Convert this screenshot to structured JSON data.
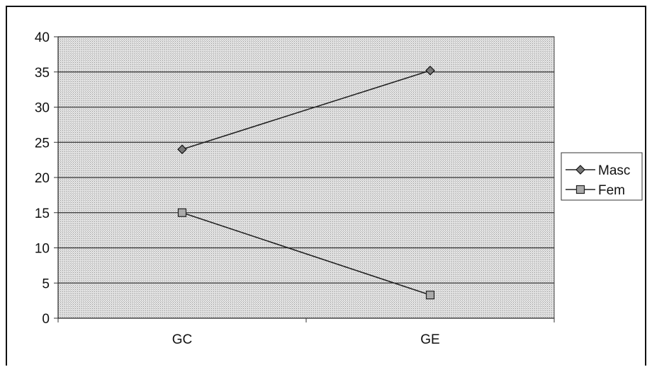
{
  "chart_data": {
    "type": "line",
    "categories": [
      "GC",
      "GE"
    ],
    "series": [
      {
        "name": "Masc",
        "values": [
          24,
          35.2
        ],
        "marker": "diamond",
        "color": "#222222"
      },
      {
        "name": "Fem",
        "values": [
          15,
          3.3
        ],
        "marker": "square",
        "color": "#222222"
      }
    ],
    "ylim": [
      0,
      40
    ],
    "yticks": [
      0,
      5,
      10,
      15,
      20,
      25,
      30,
      35,
      40
    ],
    "grid": true,
    "legend": "right",
    "plot_background": "#d9d9d9"
  }
}
